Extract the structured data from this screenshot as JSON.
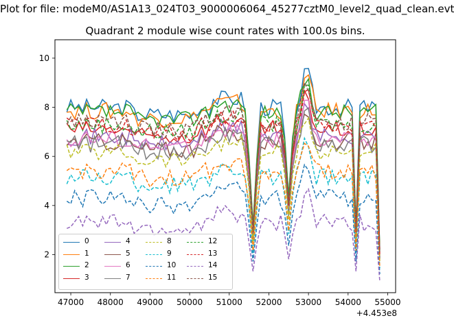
{
  "figure": {
    "suptitle": "Plot for file: modeM0/AS1A13_024T03_9000006064_45277cztM0_level2_quad_clean.evt",
    "title": "Quadrant 2 module wise count rates with 100.0s bins.",
    "x_offset_label": "+4.453e8"
  },
  "chart_data": {
    "type": "line",
    "xlim": [
      46600,
      55200
    ],
    "ylim": [
      0.45,
      10.75
    ],
    "xticks": [
      47000,
      48000,
      49000,
      50000,
      51000,
      52000,
      53000,
      54000,
      55000
    ],
    "yticks": [
      2,
      4,
      6,
      8,
      10
    ],
    "grid": false,
    "legend": {
      "placement": "lower-left",
      "columns": 4
    },
    "colors": [
      "#1f77b4",
      "#ff7f0e",
      "#2ca02c",
      "#d62728",
      "#9467bd",
      "#8c564b",
      "#e377c2",
      "#7f7f7f",
      "#bcbd22",
      "#17becf"
    ],
    "series": [
      {
        "name": "0",
        "style": "solid",
        "base": 8.0
      },
      {
        "name": "1",
        "style": "solid",
        "base": 7.85
      },
      {
        "name": "2",
        "style": "solid",
        "base": 7.8
      },
      {
        "name": "3",
        "style": "solid",
        "base": 7.1
      },
      {
        "name": "4",
        "style": "solid",
        "base": 6.8
      },
      {
        "name": "5",
        "style": "solid",
        "base": 6.6
      },
      {
        "name": "6",
        "style": "solid",
        "base": 6.7
      },
      {
        "name": "7",
        "style": "solid",
        "base": 6.5
      },
      {
        "name": "8",
        "style": "dashed",
        "base": 6.2
      },
      {
        "name": "9",
        "style": "dashed",
        "base": 5.15
      },
      {
        "name": "10",
        "style": "dashed",
        "base": 4.3
      },
      {
        "name": "11",
        "style": "dashed",
        "base": 5.4
      },
      {
        "name": "12",
        "style": "dashed",
        "base": 7.3
      },
      {
        "name": "13",
        "style": "dashed",
        "base": 7.25
      },
      {
        "name": "14",
        "style": "dashed",
        "base": 3.3
      },
      {
        "name": "15",
        "style": "dashed",
        "base": 7.4
      }
    ]
  }
}
